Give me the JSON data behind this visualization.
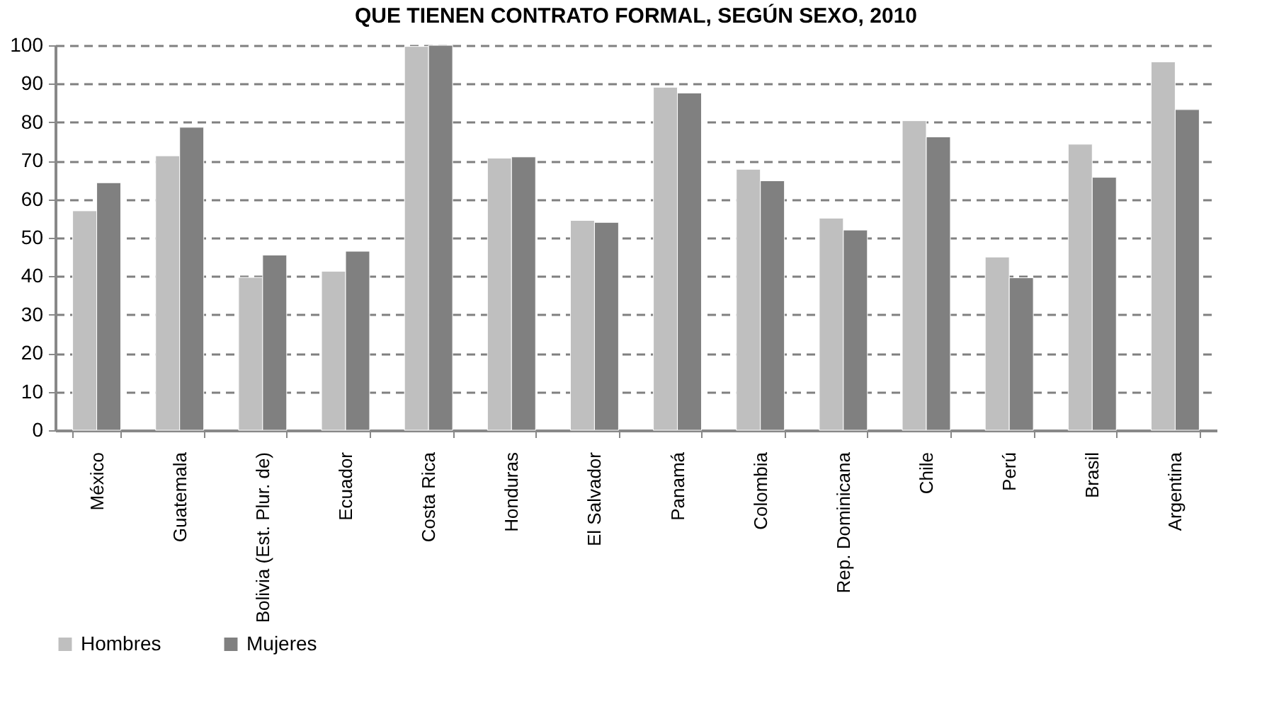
{
  "chart_data": {
    "type": "bar",
    "title": "QUE TIENEN CONTRATO FORMAL, SEGÚN SEXO, 2010",
    "categories": [
      "México",
      "Guatemala",
      "Bolivia (Est. Plur. de)",
      "Ecuador",
      "Costa Rica",
      "Honduras",
      "El Salvador",
      "Panamá",
      "Colombia",
      "Rep. Dominicana",
      "Chile",
      "Perú",
      "Brasil",
      "Argentina"
    ],
    "series": [
      {
        "name": "Hombres",
        "color": "#bfbfbf",
        "values": [
          57,
          71.3,
          39.7,
          41.3,
          99.7,
          70.7,
          54.5,
          89.1,
          67.8,
          55.1,
          80.4,
          45,
          74.3,
          95.7
        ]
      },
      {
        "name": "Mujeres",
        "color": "#808080",
        "values": [
          64.3,
          78.7,
          45.5,
          46.5,
          100,
          71,
          54,
          87.6,
          64.8,
          52,
          76.2,
          39.6,
          65.7,
          83.3
        ]
      }
    ],
    "ylim": [
      0,
      100
    ],
    "yticks": [
      0,
      10,
      20,
      30,
      40,
      50,
      60,
      70,
      80,
      90,
      100
    ],
    "grid": "y",
    "legend": "bottom"
  }
}
